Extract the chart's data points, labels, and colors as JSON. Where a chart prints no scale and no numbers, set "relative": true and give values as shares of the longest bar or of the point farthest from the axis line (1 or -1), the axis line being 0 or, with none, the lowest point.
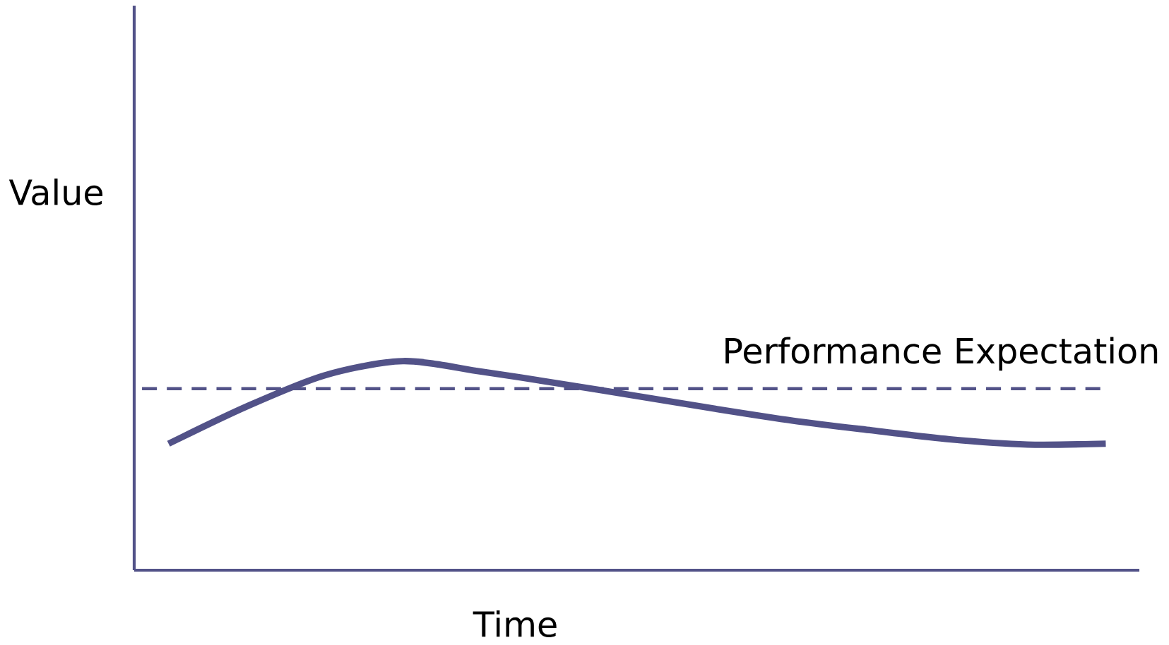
{
  "chart_data": {
    "type": "line",
    "relative": true,
    "xlabel": "Time",
    "ylabel": "Value",
    "categories": [
      null,
      null,
      null,
      null,
      null,
      null,
      null,
      null,
      null,
      null,
      null,
      null,
      null
    ],
    "series": [
      {
        "color": "#525288",
        "values": [
          0.605,
          0.783,
          0.932,
          1.0,
          0.95,
          0.893,
          0.833,
          0.772,
          0.715,
          0.669,
          0.626,
          0.601,
          0.605
        ]
      }
    ],
    "ref_lines": [
      {
        "axis": "y",
        "value": 0.868,
        "label": "Performance Expectation",
        "color": "#525288",
        "line_style": "dashed"
      }
    ],
    "line_style": "solid",
    "marker": "none"
  }
}
